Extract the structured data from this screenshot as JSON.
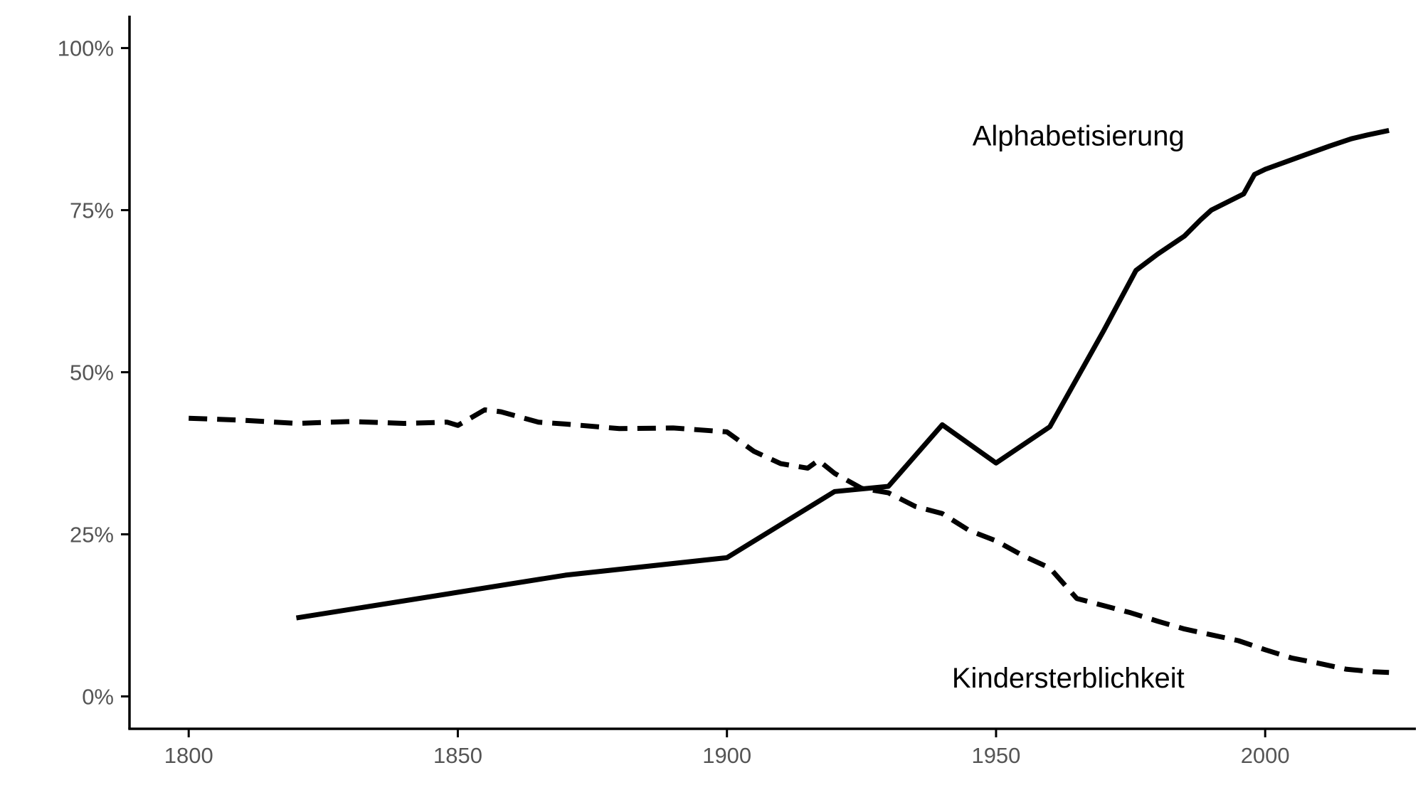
{
  "chart_data": {
    "type": "line",
    "title": "",
    "xlabel": "",
    "ylabel": "",
    "xlim": [
      1789,
      2028
    ],
    "ylim": [
      -5,
      105
    ],
    "x_ticks": [
      1800,
      1850,
      1900,
      1950,
      2000
    ],
    "x_tick_labels": [
      "1800",
      "1850",
      "1900",
      "1950",
      "2000"
    ],
    "y_ticks": [
      0,
      25,
      50,
      75,
      100
    ],
    "y_tick_labels": [
      "0%",
      "25%",
      "50%",
      "75%",
      "100%"
    ],
    "grid": false,
    "legend": "none",
    "series": [
      {
        "name": "Alphabetisierung",
        "style": "solid",
        "color": "#000000",
        "label_anchor": {
          "x": 1985,
          "y": 86.5
        },
        "points": [
          [
            1820,
            12.1
          ],
          [
            1870,
            18.7
          ],
          [
            1900,
            21.4
          ],
          [
            1910,
            26.5
          ],
          [
            1920,
            31.6
          ],
          [
            1930,
            32.4
          ],
          [
            1940,
            41.9
          ],
          [
            1950,
            36.0
          ],
          [
            1960,
            41.6
          ],
          [
            1970,
            56.4
          ],
          [
            1976,
            65.7
          ],
          [
            1980,
            68.2
          ],
          [
            1985,
            71.0
          ],
          [
            1988,
            73.5
          ],
          [
            1990,
            75.0
          ],
          [
            1996,
            77.5
          ],
          [
            1998,
            80.5
          ],
          [
            2000,
            81.3
          ],
          [
            2004,
            82.5
          ],
          [
            2008,
            83.7
          ],
          [
            2012,
            84.9
          ],
          [
            2016,
            86.0
          ],
          [
            2019,
            86.6
          ],
          [
            2023,
            87.3
          ]
        ]
      },
      {
        "name": "Kindersterblichkeit",
        "style": "dashed",
        "color": "#000000",
        "label_anchor": {
          "x": 1985,
          "y": 2.9
        },
        "points": [
          [
            1800,
            42.9
          ],
          [
            1810,
            42.6
          ],
          [
            1820,
            42.1
          ],
          [
            1830,
            42.4
          ],
          [
            1840,
            42.1
          ],
          [
            1848,
            42.3
          ],
          [
            1850,
            41.8
          ],
          [
            1855,
            44.2
          ],
          [
            1858,
            43.9
          ],
          [
            1865,
            42.3
          ],
          [
            1870,
            42.0
          ],
          [
            1880,
            41.3
          ],
          [
            1890,
            41.4
          ],
          [
            1900,
            40.8
          ],
          [
            1905,
            37.8
          ],
          [
            1910,
            35.9
          ],
          [
            1915,
            35.2
          ],
          [
            1917,
            36.4
          ],
          [
            1920,
            34.4
          ],
          [
            1925,
            32.1
          ],
          [
            1930,
            31.4
          ],
          [
            1935,
            29.3
          ],
          [
            1940,
            28.2
          ],
          [
            1945,
            25.6
          ],
          [
            1950,
            24.0
          ],
          [
            1955,
            21.7
          ],
          [
            1960,
            19.8
          ],
          [
            1965,
            15.1
          ],
          [
            1970,
            14.0
          ],
          [
            1975,
            12.9
          ],
          [
            1980,
            11.6
          ],
          [
            1985,
            10.4
          ],
          [
            1990,
            9.5
          ],
          [
            1995,
            8.6
          ],
          [
            2000,
            7.2
          ],
          [
            2005,
            5.9
          ],
          [
            2010,
            5.1
          ],
          [
            2015,
            4.2
          ],
          [
            2020,
            3.8
          ],
          [
            2023,
            3.7
          ]
        ]
      }
    ]
  }
}
